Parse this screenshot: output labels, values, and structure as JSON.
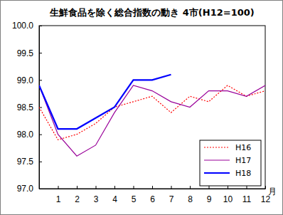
{
  "chart_data": {
    "type": "line",
    "title": "生鮮食品を除く総合指数の動き 4市(H12=100)",
    "x_label": "月",
    "categories": [
      null,
      "1",
      "2",
      "3",
      "4",
      "5",
      "6",
      "7",
      "8",
      "9",
      "10",
      "11",
      "12"
    ],
    "series": [
      {
        "name": "H16",
        "color": "#ff0000",
        "line_style": "dotted",
        "values": [
          98.5,
          97.9,
          98.0,
          98.2,
          98.5,
          98.6,
          98.7,
          98.4,
          98.7,
          98.6,
          98.9,
          98.7,
          98.8
        ]
      },
      {
        "name": "H17",
        "color": "#990099",
        "line_style": "solid",
        "values": [
          98.9,
          98.0,
          97.6,
          97.8,
          98.4,
          98.9,
          98.8,
          98.6,
          98.5,
          98.8,
          98.8,
          98.7,
          98.9
        ]
      },
      {
        "name": "H18",
        "color": "#0000ff",
        "line_style": "solid",
        "values": [
          98.9,
          98.1,
          98.1,
          98.3,
          98.5,
          99.0,
          99.0,
          99.1,
          null,
          null,
          null,
          null,
          null
        ]
      }
    ],
    "ylim": [
      97,
      100
    ],
    "yticks": [
      {
        "value": 97,
        "label": "97.0"
      },
      97.5,
      {
        "value": 98,
        "label": "98.0"
      },
      98.5,
      {
        "value": 99,
        "label": "99.0"
      },
      99.5,
      {
        "value": 100,
        "label": "100.0"
      }
    ],
    "grid": false,
    "legend": "bottom-right"
  }
}
